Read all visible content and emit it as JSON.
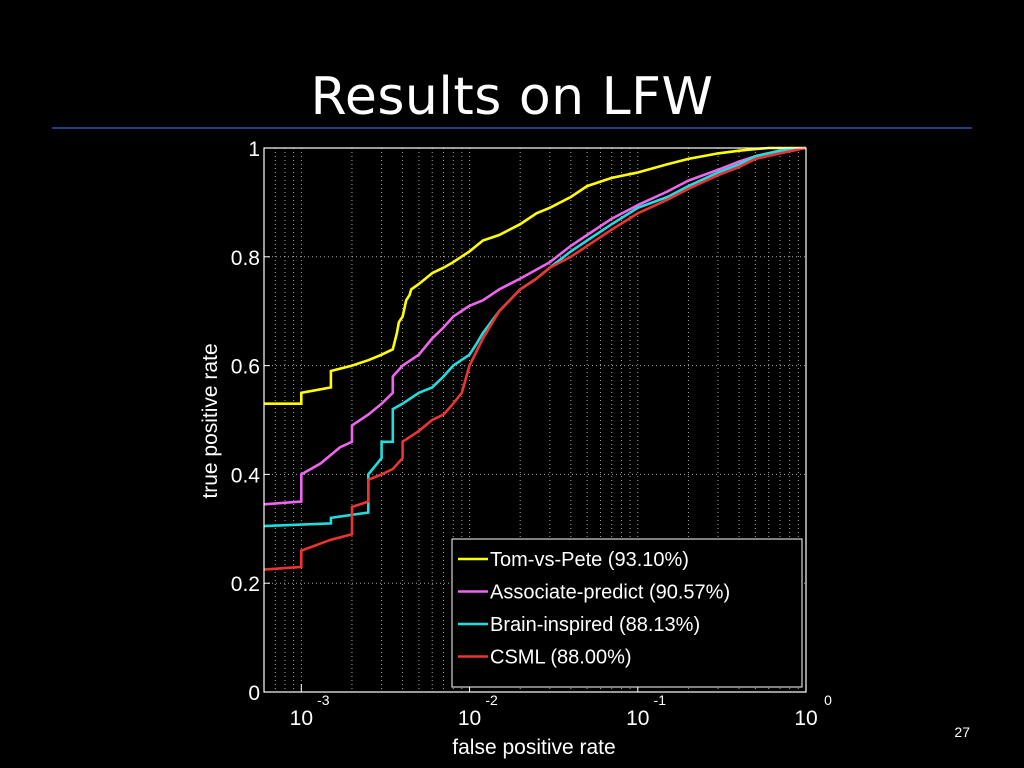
{
  "slide": {
    "title": "Results on LFW",
    "page_number": "27"
  },
  "colors": {
    "background": "#000000",
    "title_rule": "#23407a",
    "axis": "#ffffff",
    "grid": "#d0d0d0"
  },
  "chart_data": {
    "type": "line",
    "xscale": "log",
    "xlim": [
      0.0006,
      1
    ],
    "ylim": [
      0,
      1
    ],
    "xlabel": "false positive rate",
    "ylabel": "true positive rate",
    "x_ticks": [
      {
        "value": 0.001,
        "base": "10",
        "exp": "-3"
      },
      {
        "value": 0.01,
        "base": "10",
        "exp": "-2"
      },
      {
        "value": 0.1,
        "base": "10",
        "exp": "-1"
      },
      {
        "value": 1,
        "base": "10",
        "exp": "0"
      }
    ],
    "y_ticks": [
      "0",
      "0.2",
      "0.4",
      "0.6",
      "0.8",
      "1"
    ],
    "grid": true,
    "legend_position": "bottom-right",
    "series": [
      {
        "name": "Tom-vs-Pete (93.10%)",
        "color": "#ffff00",
        "x": [
          0.0006,
          0.001,
          0.001,
          0.0015,
          0.0015,
          0.002,
          0.0025,
          0.003,
          0.0035,
          0.0037,
          0.0038,
          0.004,
          0.0042,
          0.0044,
          0.0045,
          0.005,
          0.006,
          0.007,
          0.008,
          0.01,
          0.012,
          0.015,
          0.02,
          0.025,
          0.03,
          0.04,
          0.05,
          0.07,
          0.1,
          0.15,
          0.2,
          0.3,
          0.4,
          0.5,
          0.6,
          0.8,
          1
        ],
        "y": [
          0.53,
          0.53,
          0.55,
          0.56,
          0.59,
          0.6,
          0.61,
          0.62,
          0.63,
          0.66,
          0.68,
          0.69,
          0.72,
          0.73,
          0.74,
          0.75,
          0.77,
          0.78,
          0.79,
          0.81,
          0.83,
          0.84,
          0.86,
          0.88,
          0.89,
          0.91,
          0.93,
          0.945,
          0.955,
          0.97,
          0.98,
          0.99,
          0.995,
          0.998,
          1,
          1,
          1
        ]
      },
      {
        "name": "Associate-predict (90.57%)",
        "color": "#ee66ee",
        "x": [
          0.0006,
          0.001,
          0.001,
          0.0013,
          0.0017,
          0.002,
          0.002,
          0.0025,
          0.003,
          0.0035,
          0.0035,
          0.004,
          0.005,
          0.006,
          0.007,
          0.008,
          0.01,
          0.012,
          0.015,
          0.02,
          0.03,
          0.04,
          0.05,
          0.07,
          0.1,
          0.15,
          0.2,
          0.3,
          0.4,
          0.5,
          0.7,
          1
        ],
        "y": [
          0.345,
          0.35,
          0.4,
          0.42,
          0.45,
          0.46,
          0.49,
          0.51,
          0.53,
          0.55,
          0.58,
          0.6,
          0.62,
          0.65,
          0.67,
          0.69,
          0.71,
          0.72,
          0.74,
          0.76,
          0.79,
          0.82,
          0.84,
          0.87,
          0.895,
          0.92,
          0.94,
          0.96,
          0.975,
          0.985,
          0.995,
          1
        ]
      },
      {
        "name": "Brain-inspired (88.13%)",
        "color": "#22dddd",
        "x": [
          0.0006,
          0.0015,
          0.0015,
          0.0025,
          0.0025,
          0.003,
          0.003,
          0.0035,
          0.0035,
          0.004,
          0.005,
          0.006,
          0.007,
          0.008,
          0.01,
          0.011,
          0.012,
          0.015,
          0.02,
          0.025,
          0.03,
          0.04,
          0.05,
          0.07,
          0.1,
          0.15,
          0.2,
          0.3,
          0.4,
          0.5,
          0.7,
          1
        ],
        "y": [
          0.305,
          0.31,
          0.32,
          0.33,
          0.4,
          0.43,
          0.46,
          0.46,
          0.52,
          0.53,
          0.55,
          0.56,
          0.58,
          0.6,
          0.62,
          0.64,
          0.66,
          0.7,
          0.74,
          0.76,
          0.78,
          0.81,
          0.83,
          0.86,
          0.89,
          0.91,
          0.93,
          0.955,
          0.97,
          0.985,
          0.995,
          1
        ]
      },
      {
        "name": "CSML (88.00%)",
        "color": "#ee3333",
        "x": [
          0.0006,
          0.001,
          0.001,
          0.0015,
          0.002,
          0.002,
          0.0025,
          0.0025,
          0.003,
          0.0035,
          0.004,
          0.004,
          0.005,
          0.006,
          0.007,
          0.008,
          0.009,
          0.01,
          0.012,
          0.015,
          0.02,
          0.025,
          0.03,
          0.04,
          0.05,
          0.07,
          0.1,
          0.15,
          0.2,
          0.3,
          0.4,
          0.5,
          0.7,
          1
        ],
        "y": [
          0.225,
          0.23,
          0.26,
          0.28,
          0.29,
          0.34,
          0.35,
          0.39,
          0.4,
          0.41,
          0.43,
          0.46,
          0.48,
          0.5,
          0.51,
          0.53,
          0.55,
          0.6,
          0.65,
          0.7,
          0.74,
          0.76,
          0.78,
          0.8,
          0.82,
          0.85,
          0.88,
          0.905,
          0.925,
          0.95,
          0.965,
          0.98,
          0.99,
          1
        ]
      }
    ]
  }
}
